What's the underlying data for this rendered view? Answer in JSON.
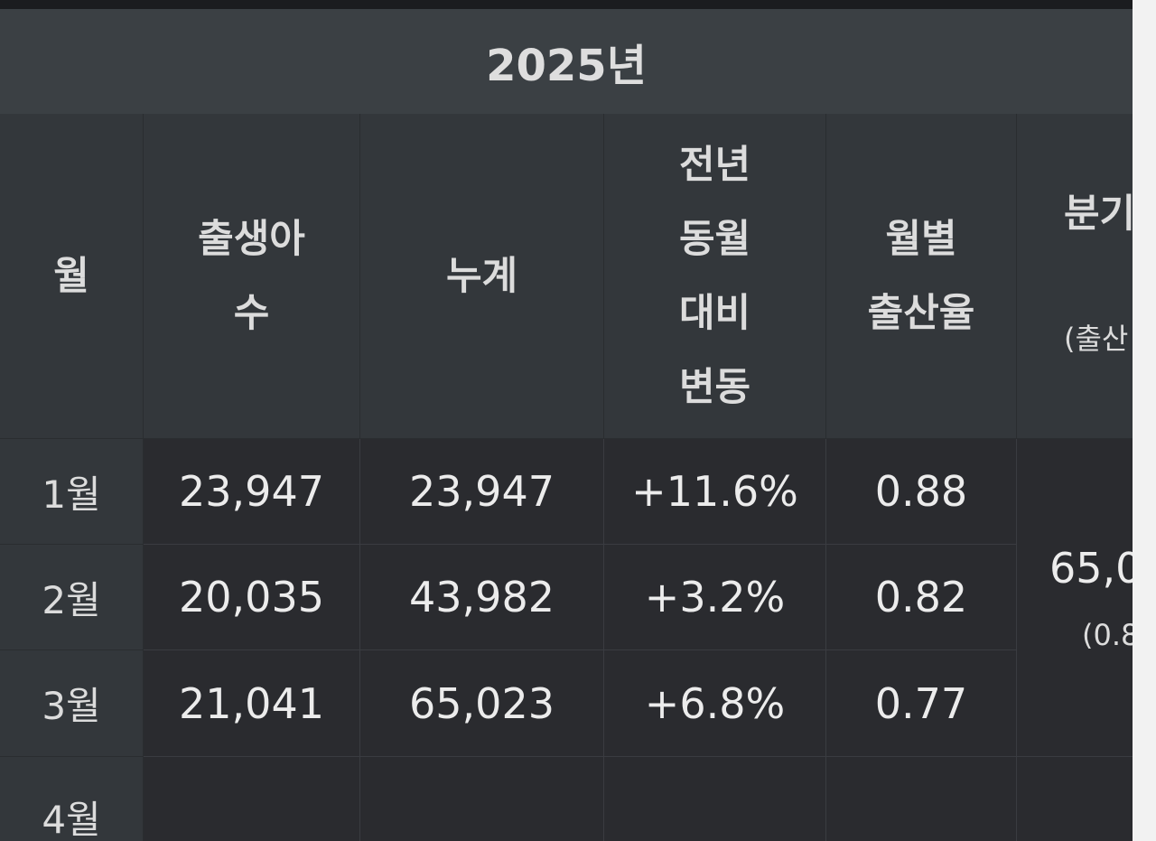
{
  "year_label": "2025년",
  "headers": {
    "month": "월",
    "births": "출생아\n수",
    "cumulative": "누계",
    "yoy_change": "전년\n동월\n대비\n변동",
    "monthly_tfr": "월별\n출산율",
    "quarter": "분기",
    "quarter_sub": "(출산"
  },
  "rows": [
    {
      "month": "1월",
      "births": "23,947",
      "cumulative": "23,947",
      "yoy_change": "+11.6%",
      "monthly_tfr": "0.88"
    },
    {
      "month": "2월",
      "births": "20,035",
      "cumulative": "43,982",
      "yoy_change": "+3.2%",
      "monthly_tfr": "0.82"
    },
    {
      "month": "3월",
      "births": "21,041",
      "cumulative": "65,023",
      "yoy_change": "+6.8%",
      "monthly_tfr": "0.77"
    },
    {
      "month": "4월",
      "births": "",
      "cumulative": "",
      "yoy_change": "",
      "monthly_tfr": ""
    }
  ],
  "quarter_q1": {
    "value": "65,0",
    "sub": "(0.8"
  }
}
